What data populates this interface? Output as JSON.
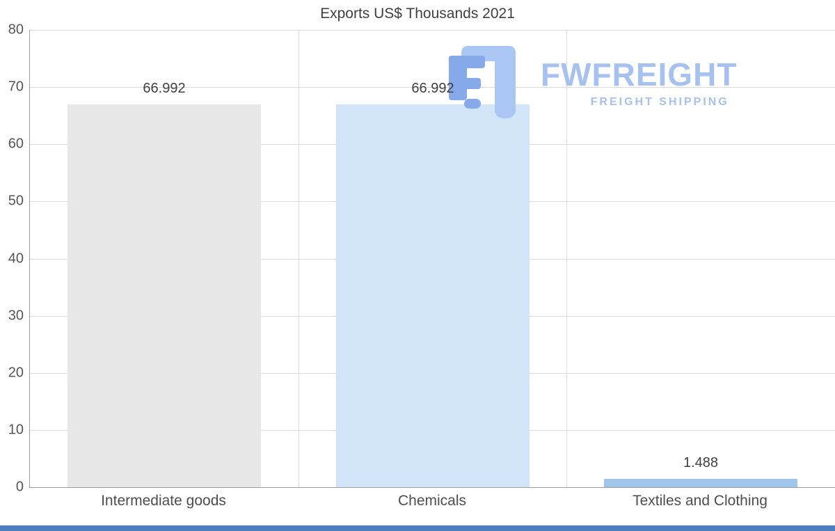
{
  "chart_data": {
    "type": "bar",
    "title": "Exports US$ Thousands 2021",
    "categories": [
      "Intermediate goods",
      "Chemicals",
      "Textiles and Clothing"
    ],
    "values": [
      66.992,
      66.992,
      1.488
    ],
    "value_labels": [
      "66.992",
      "66.992",
      "1.488"
    ],
    "bar_colors": [
      "#e7e7e7",
      "#d2e4f8",
      "#9fc5eb"
    ],
    "xlabel": "",
    "ylabel": "",
    "ylim": [
      0,
      80
    ],
    "y_ticks": [
      0,
      10,
      20,
      30,
      40,
      50,
      60,
      70,
      80
    ],
    "grid": true,
    "legend": false
  },
  "watermark": {
    "brand": "FWFREIGHT",
    "tagline": "FREIGHT SHIPPING",
    "color": "#a6c1ef",
    "icon_color_dark": "#86a9ea",
    "icon_color_light": "#aac6f2"
  },
  "colors": {
    "bottom_bar": "#4a7fc1",
    "grid": "#d9d9d9",
    "axis": "#9b9b9b",
    "title": "#3f3f3f",
    "tick": "#555555"
  }
}
